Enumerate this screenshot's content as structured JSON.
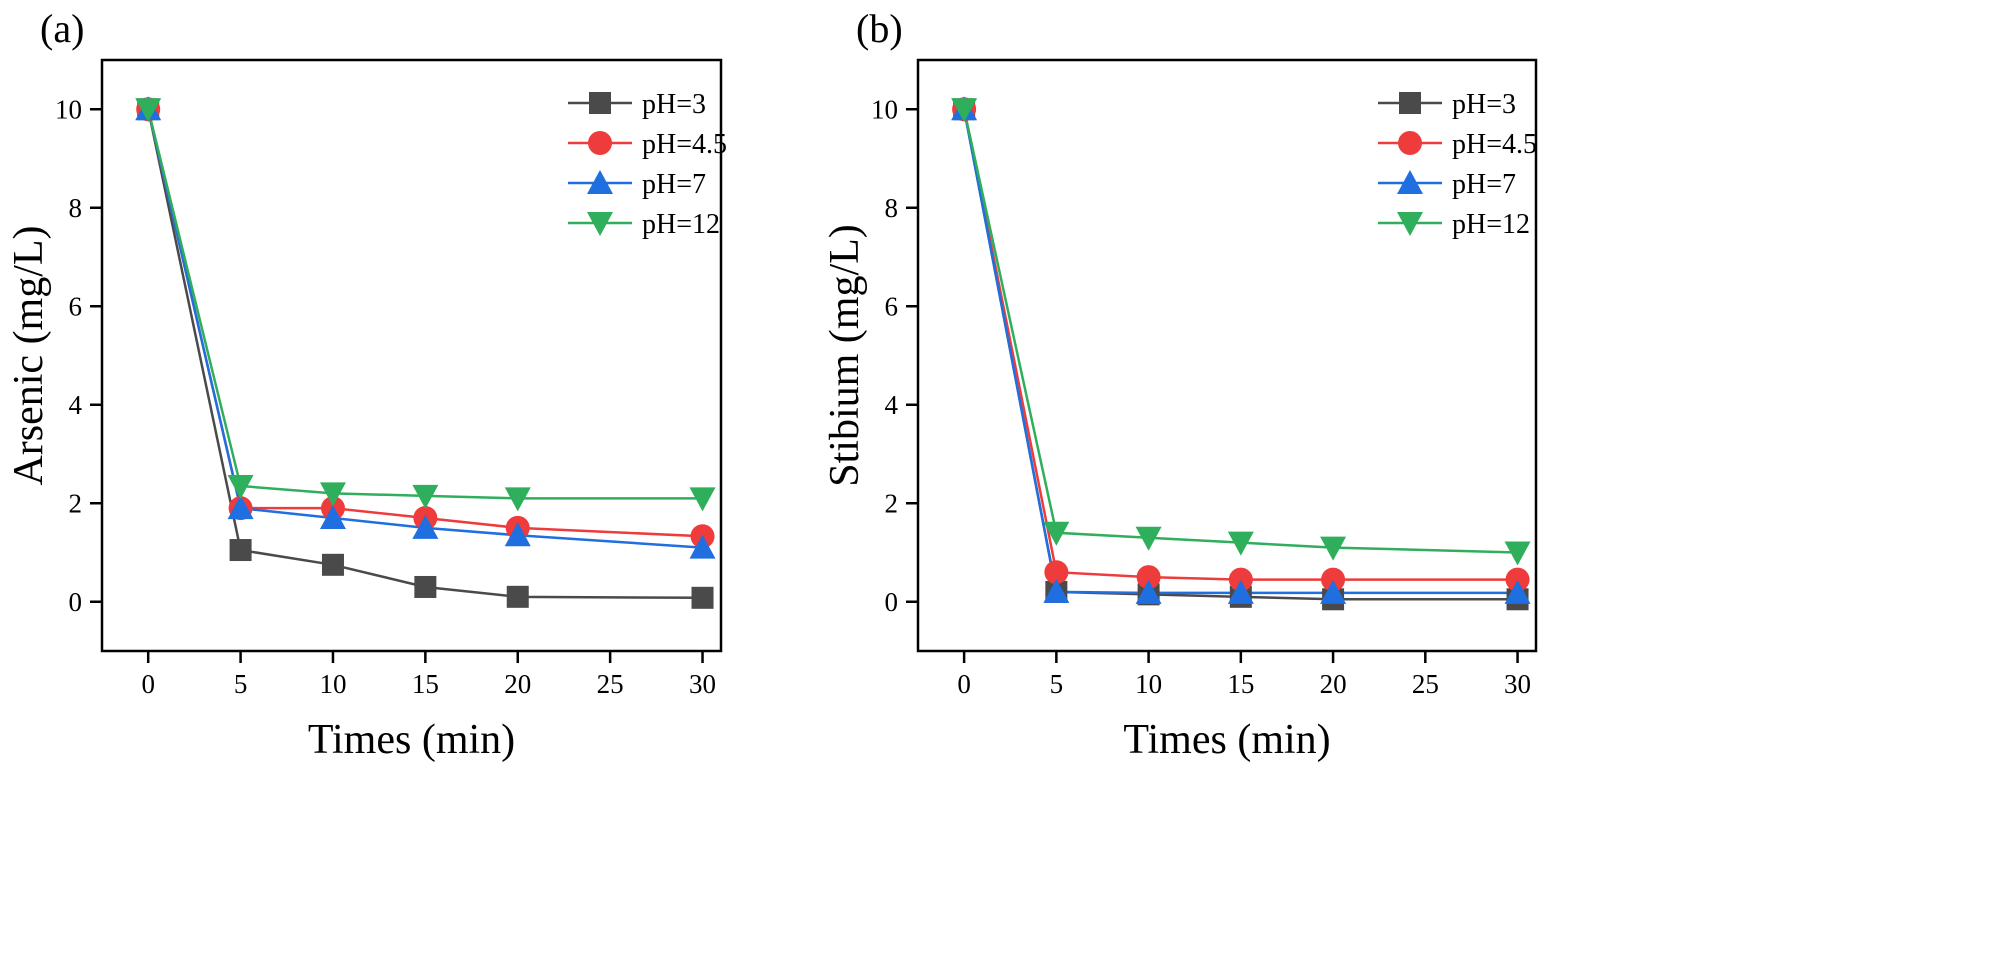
{
  "chart_data": [
    {
      "type": "line",
      "panel_label": "(a)",
      "xlabel": "Times (min)",
      "ylabel": "Arsenic (mg/L)",
      "xlim": [
        -2.5,
        31
      ],
      "ylim": [
        -1,
        11
      ],
      "xticks": [
        0,
        5,
        10,
        15,
        20,
        25,
        30
      ],
      "yticks": [
        0,
        2,
        4,
        6,
        8,
        10
      ],
      "legend_position": "top-right",
      "x": [
        0,
        5,
        10,
        15,
        20,
        30
      ],
      "series": [
        {
          "name": "pH=3",
          "color": "#4a4a4a",
          "marker": "square",
          "values": [
            10,
            1.05,
            0.75,
            0.3,
            0.1,
            0.08
          ]
        },
        {
          "name": "pH=4.5",
          "color": "#ee3b3b",
          "marker": "circle",
          "values": [
            10,
            1.9,
            1.9,
            1.7,
            1.5,
            1.33
          ]
        },
        {
          "name": "pH=7",
          "color": "#1f6fe0",
          "marker": "triangle-up",
          "values": [
            10,
            1.9,
            1.7,
            1.5,
            1.35,
            1.1
          ]
        },
        {
          "name": "pH=12",
          "color": "#2fae5b",
          "marker": "triangle-down",
          "values": [
            10,
            2.35,
            2.2,
            2.15,
            2.1,
            2.1
          ]
        }
      ]
    },
    {
      "type": "line",
      "panel_label": "(b)",
      "xlabel": "Times (min)",
      "ylabel": "Stibium (mg/L)",
      "xlim": [
        -2.5,
        31
      ],
      "ylim": [
        -1,
        11
      ],
      "xticks": [
        0,
        5,
        10,
        15,
        20,
        25,
        30
      ],
      "yticks": [
        0,
        2,
        4,
        6,
        8,
        10
      ],
      "legend_position": "top-right",
      "x": [
        0,
        5,
        10,
        15,
        20,
        30
      ],
      "series": [
        {
          "name": "pH=3",
          "color": "#4a4a4a",
          "marker": "square",
          "values": [
            10,
            0.2,
            0.15,
            0.1,
            0.05,
            0.05
          ]
        },
        {
          "name": "pH=4.5",
          "color": "#ee3b3b",
          "marker": "circle",
          "values": [
            10,
            0.6,
            0.5,
            0.45,
            0.45,
            0.45
          ]
        },
        {
          "name": "pH=7",
          "color": "#1f6fe0",
          "marker": "triangle-up",
          "values": [
            10,
            0.2,
            0.18,
            0.18,
            0.18,
            0.18
          ]
        },
        {
          "name": "pH=12",
          "color": "#2fae5b",
          "marker": "triangle-down",
          "values": [
            10,
            1.4,
            1.3,
            1.2,
            1.1,
            1.0
          ]
        }
      ]
    }
  ]
}
